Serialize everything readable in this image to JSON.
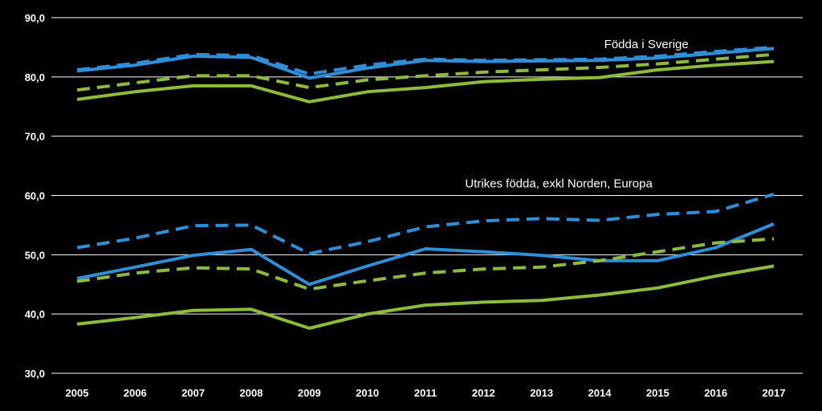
{
  "chart_data": {
    "type": "line",
    "x": [
      "2005",
      "2006",
      "2007",
      "2008",
      "2009",
      "2010",
      "2011",
      "2012",
      "2013",
      "2014",
      "2015",
      "2016",
      "2017"
    ],
    "ylim": [
      30,
      90
    ],
    "yticks": [
      "30,0",
      "40,0",
      "50,0",
      "60,0",
      "70,0",
      "80,0",
      "90,0"
    ],
    "ytick_values": [
      30,
      40,
      50,
      60,
      70,
      80,
      90
    ],
    "grid": true,
    "annotations": [
      {
        "text": "Födda i Sverige",
        "x": "2013",
        "y": 85.5
      },
      {
        "text": "Utrikes födda, exkl Norden, Europa",
        "x": "2012",
        "y": 62
      }
    ],
    "series": [
      {
        "color": "#2e8fd8",
        "dash": "solid",
        "values": [
          81.0,
          82.0,
          83.5,
          83.3,
          79.8,
          81.5,
          82.8,
          82.6,
          82.7,
          82.8,
          83.2,
          84.0,
          84.8
        ]
      },
      {
        "color": "#2e8fd8",
        "dash": "dashed",
        "values": [
          81.2,
          82.3,
          83.8,
          83.6,
          80.5,
          82.0,
          83.0,
          82.8,
          82.9,
          83.0,
          83.5,
          84.3,
          85.0
        ]
      },
      {
        "color": "#8dbb3c",
        "dash": "dashed",
        "values": [
          77.8,
          79.0,
          80.2,
          80.2,
          78.2,
          79.5,
          80.2,
          80.8,
          81.2,
          81.6,
          82.2,
          83.0,
          83.8
        ]
      },
      {
        "color": "#8dbb3c",
        "dash": "solid",
        "values": [
          76.2,
          77.5,
          78.5,
          78.5,
          75.8,
          77.5,
          78.2,
          79.2,
          79.6,
          79.9,
          81.2,
          82.0,
          82.6
        ]
      },
      {
        "color": "#2e8fd8",
        "dash": "dashed",
        "values": [
          51.2,
          52.8,
          54.9,
          55.0,
          50.2,
          52.2,
          54.7,
          55.7,
          56.1,
          55.8,
          56.8,
          57.3,
          60.2
        ]
      },
      {
        "color": "#2e8fd8",
        "dash": "solid",
        "values": [
          46.0,
          47.9,
          49.9,
          50.9,
          45.0,
          48.1,
          51.0,
          50.5,
          49.9,
          49.0,
          49.0,
          51.2,
          55.2
        ]
      },
      {
        "color": "#8dbb3c",
        "dash": "dashed",
        "values": [
          45.5,
          46.9,
          47.8,
          47.6,
          44.2,
          45.6,
          46.9,
          47.6,
          47.9,
          49.0,
          50.5,
          52.0,
          52.7
        ]
      },
      {
        "color": "#8dbb3c",
        "dash": "solid",
        "values": [
          38.3,
          39.4,
          40.6,
          40.8,
          37.6,
          40.0,
          41.5,
          42.0,
          42.3,
          43.2,
          44.4,
          46.4,
          48.1
        ]
      }
    ]
  }
}
